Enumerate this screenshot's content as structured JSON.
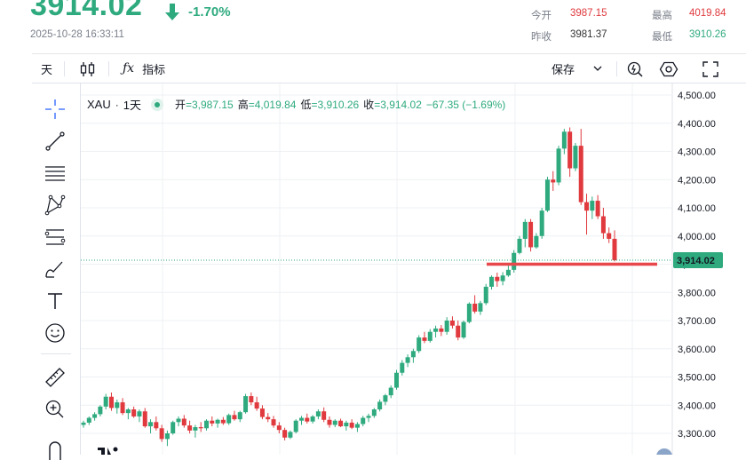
{
  "header": {
    "price": "3914.02",
    "change_pct": "-1.70%",
    "timestamp": "2025-10-28 16:33:11",
    "stats": {
      "open_label": "今开",
      "open_value": "3987.15",
      "high_label": "最高",
      "high_value": "4019.84",
      "prev_close_label": "昨收",
      "prev_close_value": "3981.37",
      "low_label": "最低",
      "low_value": "3910.26"
    }
  },
  "toolbar": {
    "interval": "天",
    "indicators": "指标",
    "save": "保存"
  },
  "legend": {
    "symbol": "XAU",
    "interval": "1天",
    "o_label": "开",
    "o": "=3,987.15",
    "h_label": "高",
    "h": "=4,019.84",
    "l_label": "低",
    "l": "=3,910.26",
    "c_label": "收",
    "c": "=3,914.02",
    "chg": "−67.35 (−1.69%)"
  },
  "colors": {
    "up": "#2eaa7e",
    "down": "#e0393e",
    "line": "#e8474b",
    "grid": "#eef0f3"
  },
  "chart_data": {
    "type": "candlestick",
    "symbol": "XAU",
    "interval": "1天",
    "y_ticks": [
      "4,500.00",
      "4,400.00",
      "4,300.00",
      "4,200.00",
      "4,100.00",
      "4,000.00",
      "3,900.00",
      "3,800.00",
      "3,700.00",
      "3,600.00",
      "3,500.00",
      "3,400.00",
      "3,300.00"
    ],
    "ylim": [
      3260,
      4530
    ],
    "current_price_label": "3,914.02",
    "current_price": 3914.02,
    "horizontal_line": 3900,
    "candles": [
      [
        3330,
        3345,
        3320,
        3338
      ],
      [
        3338,
        3360,
        3330,
        3355
      ],
      [
        3355,
        3375,
        3345,
        3368
      ],
      [
        3368,
        3400,
        3360,
        3395
      ],
      [
        3395,
        3440,
        3385,
        3430
      ],
      [
        3430,
        3445,
        3380,
        3390
      ],
      [
        3390,
        3420,
        3370,
        3410
      ],
      [
        3410,
        3425,
        3365,
        3372
      ],
      [
        3372,
        3390,
        3350,
        3385
      ],
      [
        3385,
        3395,
        3355,
        3360
      ],
      [
        3360,
        3385,
        3340,
        3378
      ],
      [
        3378,
        3390,
        3320,
        3325
      ],
      [
        3325,
        3350,
        3300,
        3340
      ],
      [
        3340,
        3360,
        3310,
        3318
      ],
      [
        3318,
        3330,
        3270,
        3280
      ],
      [
        3280,
        3310,
        3255,
        3300
      ],
      [
        3300,
        3345,
        3295,
        3340
      ],
      [
        3340,
        3360,
        3325,
        3352
      ],
      [
        3352,
        3365,
        3320,
        3328
      ],
      [
        3328,
        3345,
        3300,
        3310
      ],
      [
        3310,
        3330,
        3285,
        3322
      ],
      [
        3322,
        3340,
        3305,
        3318
      ],
      [
        3318,
        3350,
        3310,
        3345
      ],
      [
        3345,
        3360,
        3325,
        3335
      ],
      [
        3335,
        3352,
        3320,
        3348
      ],
      [
        3348,
        3358,
        3330,
        3336
      ],
      [
        3336,
        3370,
        3330,
        3365
      ],
      [
        3365,
        3380,
        3345,
        3350
      ],
      [
        3350,
        3380,
        3340,
        3375
      ],
      [
        3375,
        3440,
        3370,
        3432
      ],
      [
        3432,
        3445,
        3400,
        3410
      ],
      [
        3410,
        3430,
        3380,
        3388
      ],
      [
        3388,
        3400,
        3350,
        3358
      ],
      [
        3358,
        3372,
        3340,
        3350
      ],
      [
        3350,
        3362,
        3320,
        3328
      ],
      [
        3328,
        3340,
        3300,
        3312
      ],
      [
        3312,
        3320,
        3275,
        3285
      ],
      [
        3285,
        3310,
        3280,
        3305
      ],
      [
        3305,
        3350,
        3300,
        3345
      ],
      [
        3345,
        3362,
        3330,
        3355
      ],
      [
        3355,
        3370,
        3335,
        3342
      ],
      [
        3342,
        3365,
        3335,
        3360
      ],
      [
        3360,
        3385,
        3350,
        3378
      ],
      [
        3378,
        3392,
        3340,
        3348
      ],
      [
        3348,
        3360,
        3320,
        3330
      ],
      [
        3330,
        3350,
        3322,
        3345
      ],
      [
        3345,
        3352,
        3322,
        3325
      ],
      [
        3325,
        3345,
        3310,
        3338
      ],
      [
        3338,
        3350,
        3315,
        3320
      ],
      [
        3320,
        3340,
        3305,
        3333
      ],
      [
        3333,
        3362,
        3325,
        3355
      ],
      [
        3355,
        3370,
        3340,
        3362
      ],
      [
        3362,
        3390,
        3355,
        3385
      ],
      [
        3385,
        3420,
        3378,
        3412
      ],
      [
        3412,
        3440,
        3400,
        3435
      ],
      [
        3435,
        3470,
        3425,
        3462
      ],
      [
        3462,
        3525,
        3455,
        3515
      ],
      [
        3515,
        3560,
        3505,
        3550
      ],
      [
        3550,
        3580,
        3535,
        3570
      ],
      [
        3570,
        3600,
        3550,
        3592
      ],
      [
        3592,
        3648,
        3585,
        3640
      ],
      [
        3640,
        3660,
        3620,
        3628
      ],
      [
        3628,
        3670,
        3622,
        3660
      ],
      [
        3660,
        3682,
        3640,
        3672
      ],
      [
        3672,
        3684,
        3645,
        3660
      ],
      [
        3660,
        3712,
        3650,
        3700
      ],
      [
        3700,
        3715,
        3672,
        3682
      ],
      [
        3682,
        3700,
        3630,
        3640
      ],
      [
        3640,
        3700,
        3635,
        3695
      ],
      [
        3695,
        3765,
        3690,
        3760
      ],
      [
        3760,
        3790,
        3725,
        3732
      ],
      [
        3732,
        3770,
        3720,
        3762
      ],
      [
        3762,
        3830,
        3755,
        3820
      ],
      [
        3820,
        3860,
        3810,
        3855
      ],
      [
        3855,
        3870,
        3820,
        3840
      ],
      [
        3840,
        3872,
        3825,
        3860
      ],
      [
        3860,
        3905,
        3855,
        3880
      ],
      [
        3880,
        3950,
        3870,
        3940
      ],
      [
        3940,
        4000,
        3935,
        3990
      ],
      [
        3990,
        4060,
        3960,
        4050
      ],
      [
        4050,
        4060,
        3945,
        3960
      ],
      [
        3960,
        4010,
        3955,
        4000
      ],
      [
        4000,
        4100,
        3990,
        4090
      ],
      [
        4090,
        4210,
        4085,
        4200
      ],
      [
        4200,
        4230,
        4160,
        4190
      ],
      [
        4190,
        4320,
        4180,
        4310
      ],
      [
        4310,
        4380,
        4290,
        4370
      ],
      [
        4370,
        4385,
        4210,
        4240
      ],
      [
        4240,
        4330,
        4230,
        4320
      ],
      [
        4320,
        4380,
        4110,
        4120
      ],
      [
        4120,
        4150,
        4005,
        4090
      ],
      [
        4090,
        4140,
        4060,
        4125
      ],
      [
        4125,
        4145,
        4060,
        4070
      ],
      [
        4070,
        4100,
        3990,
        4010
      ],
      [
        4010,
        4030,
        3975,
        3990
      ],
      [
        3990,
        4020,
        3910,
        3914
      ]
    ]
  }
}
